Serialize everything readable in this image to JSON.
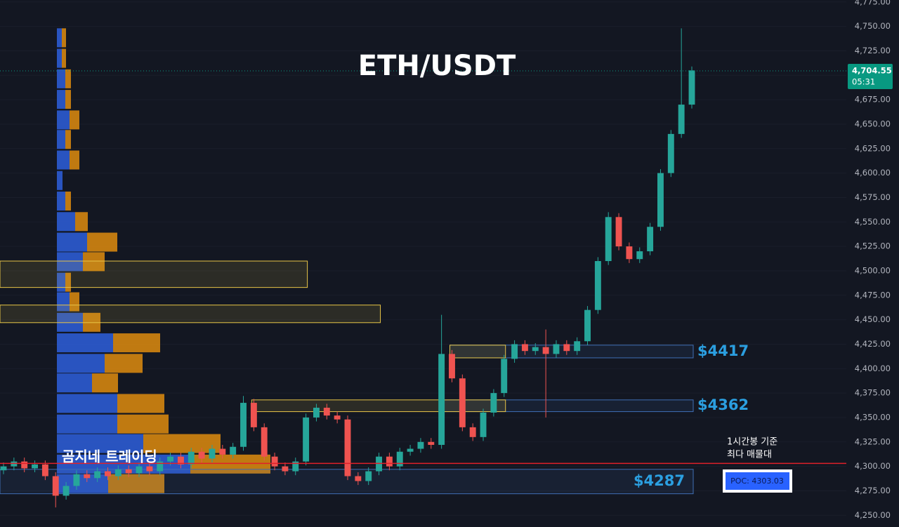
{
  "chart_data": {
    "type": "candlestick",
    "title": "ETH/USDT",
    "watermark": "곰지네 트레이딩",
    "ylim": [
      4238,
      4777
    ],
    "yticks": [
      {
        "value": 4775,
        "label": "4,775.00"
      },
      {
        "value": 4750,
        "label": "4,750.00"
      },
      {
        "value": 4725,
        "label": "4,725.00"
      },
      {
        "value": 4700,
        "label": "4,700.00"
      },
      {
        "value": 4675,
        "label": "4,675.00"
      },
      {
        "value": 4650,
        "label": "4,650.00"
      },
      {
        "value": 4625,
        "label": "4,625.00"
      },
      {
        "value": 4600,
        "label": "4,600.00"
      },
      {
        "value": 4575,
        "label": "4,575.00"
      },
      {
        "value": 4550,
        "label": "4,550.00"
      },
      {
        "value": 4525,
        "label": "4,525.00"
      },
      {
        "value": 4500,
        "label": "4,500.00"
      },
      {
        "value": 4475,
        "label": "4,475.00"
      },
      {
        "value": 4450,
        "label": "4,450.00"
      },
      {
        "value": 4425,
        "label": "4,425.00"
      },
      {
        "value": 4400,
        "label": "4,400.00"
      },
      {
        "value": 4375,
        "label": "4,375.00"
      },
      {
        "value": 4350,
        "label": "4,350.00"
      },
      {
        "value": 4325,
        "label": "4,325.00"
      },
      {
        "value": 4300,
        "label": "4,300.00"
      },
      {
        "value": 4275,
        "label": "4,275.00"
      },
      {
        "value": 4250,
        "label": "4,250.00"
      }
    ],
    "grid": true,
    "up_color": "#26a69a",
    "down_color": "#ef5350",
    "open": [
      4296,
      4300,
      4305,
      4298,
      4302,
      4290,
      4270,
      4280,
      4292,
      4288,
      4295,
      4290,
      4297,
      4293,
      4300,
      4295,
      4305,
      4310,
      4302,
      4315,
      4308,
      4318,
      4312,
      4320,
      4365,
      4340,
      4310,
      4300,
      4295,
      4305,
      4350,
      4360,
      4352,
      4348,
      4290,
      4285,
      4295,
      4310,
      4300,
      4315,
      4318,
      4325,
      4322,
      4415,
      4390,
      4340,
      4330,
      4355,
      4375,
      4410,
      4425,
      4418,
      4422,
      4415,
      4425,
      4418,
      4428,
      4460,
      4510,
      4555,
      4525,
      4512,
      4520,
      4545,
      4600,
      4640,
      4670
    ],
    "high": [
      4304,
      4309,
      4309,
      4306,
      4306,
      4294,
      4284,
      4296,
      4296,
      4299,
      4299,
      4301,
      4301,
      4304,
      4304,
      4309,
      4314,
      4314,
      4319,
      4319,
      4322,
      4322,
      4324,
      4372,
      4369,
      4344,
      4314,
      4304,
      4309,
      4354,
      4364,
      4364,
      4356,
      4352,
      4294,
      4299,
      4314,
      4314,
      4319,
      4322,
      4329,
      4329,
      4455,
      4419,
      4394,
      4344,
      4359,
      4379,
      4414,
      4429,
      4429,
      4426,
      4440,
      4429,
      4429,
      4432,
      4464,
      4514,
      4560,
      4559,
      4529,
      4524,
      4549,
      4604,
      4644,
      4748,
      4709
    ],
    "low": [
      4292,
      4296,
      4294,
      4294,
      4286,
      4258,
      4266,
      4276,
      4284,
      4284,
      4286,
      4286,
      4289,
      4289,
      4291,
      4291,
      4301,
      4298,
      4298,
      4304,
      4304,
      4308,
      4308,
      4316,
      4336,
      4306,
      4296,
      4291,
      4291,
      4301,
      4346,
      4348,
      4344,
      4286,
      4281,
      4281,
      4291,
      4296,
      4296,
      4311,
      4314,
      4318,
      4318,
      4386,
      4336,
      4326,
      4326,
      4351,
      4371,
      4406,
      4414,
      4414,
      4350,
      4411,
      4414,
      4414,
      4424,
      4456,
      4506,
      4521,
      4508,
      4508,
      4516,
      4541,
      4596,
      4636,
      4666
    ],
    "close": [
      4300,
      4305,
      4298,
      4302,
      4290,
      4270,
      4280,
      4292,
      4288,
      4295,
      4290,
      4297,
      4293,
      4300,
      4295,
      4305,
      4310,
      4302,
      4315,
      4308,
      4318,
      4312,
      4320,
      4365,
      4340,
      4310,
      4300,
      4295,
      4305,
      4350,
      4360,
      4352,
      4348,
      4290,
      4285,
      4295,
      4310,
      4300,
      4315,
      4318,
      4325,
      4322,
      4415,
      4390,
      4340,
      4330,
      4355,
      4375,
      4410,
      4425,
      4418,
      4422,
      4415,
      4425,
      4418,
      4428,
      4460,
      4510,
      4555,
      4525,
      4512,
      4520,
      4545,
      4600,
      4640,
      4670,
      4705
    ],
    "volume_profile": {
      "buy_color": "#2c5bd1",
      "sell_color": "#d4850f",
      "prices": [
        4738,
        4717,
        4696,
        4675,
        4654,
        4634,
        4613,
        4592,
        4571,
        4550,
        4529,
        4509,
        4488,
        4468,
        4447,
        4426,
        4405,
        4385,
        4364,
        4343,
        4323,
        4302,
        4282
      ],
      "buy": [
        7,
        7,
        12,
        12,
        18,
        12,
        18,
        8,
        12,
        26,
        43,
        37,
        12,
        18,
        37,
        80,
        68,
        50,
        86,
        86,
        123,
        190,
        73
      ],
      "sell": [
        6,
        6,
        8,
        8,
        14,
        8,
        14,
        0,
        8,
        18,
        43,
        31,
        8,
        14,
        25,
        67,
        54,
        37,
        67,
        73,
        110,
        114,
        80
      ]
    },
    "zones": [
      {
        "low": 4483,
        "high": 4510,
        "from": 0,
        "to": 29,
        "color": "#e8c547"
      },
      {
        "low": 4447,
        "high": 4465,
        "from": 0,
        "to": 36,
        "color": "#e8c547"
      },
      {
        "low": 4411,
        "high": 4424,
        "from": 43,
        "to": 66,
        "color": "#3f6fb5",
        "label": "$4417"
      },
      {
        "low": 4411,
        "high": 4424,
        "from": 43,
        "to": 48,
        "color": "#e8c547"
      },
      {
        "low": 4356,
        "high": 4368,
        "from": 42,
        "to": 66,
        "color": "#3f6fb5",
        "label": "$4362"
      },
      {
        "low": 4356,
        "high": 4368,
        "from": 24,
        "to": 48,
        "color": "#e8c547"
      },
      {
        "low": 4272,
        "high": 4297,
        "from": 0,
        "to": 66,
        "color": "#3f6fb5",
        "label": "$4287"
      }
    ],
    "poc": {
      "value": 4303.03,
      "label": "POC: 4303.03",
      "color": "#e0202a",
      "note": [
        "1시간봉 기준",
        "최다 매물대"
      ]
    },
    "last_price": {
      "value": 4704.55,
      "label": "4,704.55",
      "timer": "05:31",
      "color": "#089981"
    }
  }
}
